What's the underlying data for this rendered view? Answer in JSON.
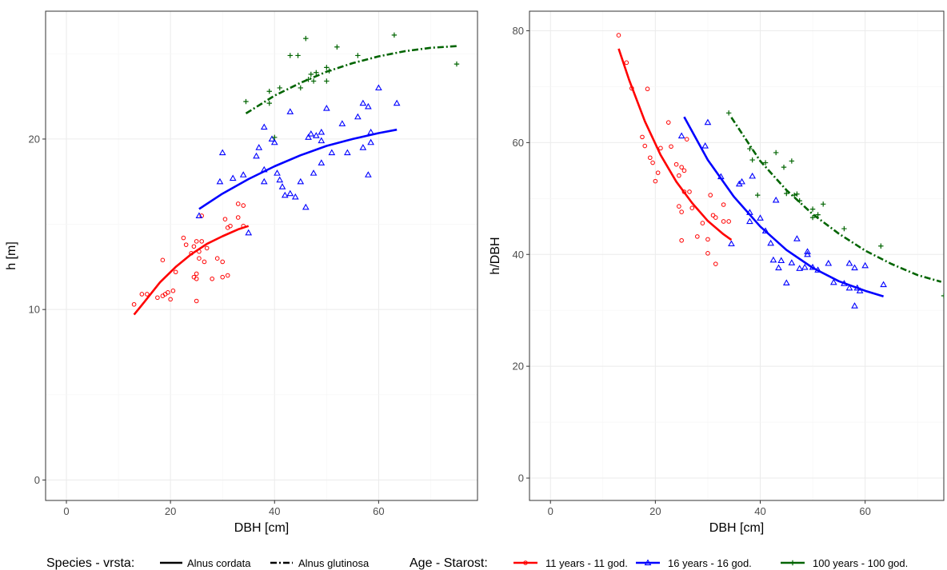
{
  "chart_data": [
    {
      "type": "scatter",
      "xlabel": "DBH [cm]",
      "ylabel": "h [m]",
      "xlim": [
        -4,
        79
      ],
      "ylim": [
        -1.2,
        27.5
      ],
      "xticks": [
        0,
        20,
        40,
        60
      ],
      "yticks": [
        0,
        10,
        20
      ],
      "grid": true,
      "series": [
        {
          "name": "11 years - 11 god.",
          "color": "#ff0000",
          "marker": "circle",
          "points": [
            [
              13,
              10.3
            ],
            [
              14.5,
              10.9
            ],
            [
              15.5,
              10.9
            ],
            [
              17.5,
              10.7
            ],
            [
              18.5,
              10.8
            ],
            [
              18.5,
              12.9
            ],
            [
              19,
              10.9
            ],
            [
              19.5,
              11
            ],
            [
              20,
              10.6
            ],
            [
              20.5,
              11.1
            ],
            [
              21,
              12.2
            ],
            [
              22.5,
              14.2
            ],
            [
              23,
              13.8
            ],
            [
              24,
              13.3
            ],
            [
              24.5,
              13.7
            ],
            [
              24.5,
              11.9
            ],
            [
              25,
              14
            ],
            [
              25,
              12.1
            ],
            [
              25,
              11.8
            ],
            [
              25,
              10.5
            ],
            [
              25.5,
              13.4
            ],
            [
              25.5,
              13
            ],
            [
              26,
              14
            ],
            [
              26,
              15.5
            ],
            [
              26.5,
              12.8
            ],
            [
              27,
              13.6
            ],
            [
              28,
              11.8
            ],
            [
              29,
              13
            ],
            [
              30,
              12.8
            ],
            [
              30,
              11.9
            ],
            [
              30.5,
              15.3
            ],
            [
              31,
              14.8
            ],
            [
              31,
              12
            ],
            [
              31.5,
              14.9
            ],
            [
              33,
              16.2
            ],
            [
              33,
              15.4
            ],
            [
              34,
              16.1
            ],
            [
              34,
              14.9
            ]
          ],
          "fit": [
            [
              13,
              9.7
            ],
            [
              15,
              10.45
            ],
            [
              18,
              11.6
            ],
            [
              21,
              12.5
            ],
            [
              24,
              13.25
            ],
            [
              27,
              13.85
            ],
            [
              30,
              14.3
            ],
            [
              33,
              14.7
            ],
            [
              35,
              14.9
            ]
          ]
        },
        {
          "name": "16 years - 16 god.",
          "color": "#0000ff",
          "marker": "triangle",
          "points": [
            [
              25.5,
              15.5
            ],
            [
              29.5,
              17.5
            ],
            [
              30,
              19.2
            ],
            [
              32,
              17.7
            ],
            [
              34,
              17.9
            ],
            [
              35,
              14.5
            ],
            [
              36.5,
              19
            ],
            [
              37,
              19.5
            ],
            [
              38,
              17.5
            ],
            [
              38,
              18.2
            ],
            [
              38,
              20.7
            ],
            [
              39.5,
              20
            ],
            [
              40,
              19.8
            ],
            [
              40.5,
              18
            ],
            [
              41,
              17.6
            ],
            [
              41.5,
              17.2
            ],
            [
              42,
              16.7
            ],
            [
              43,
              16.8
            ],
            [
              43,
              21.6
            ],
            [
              44,
              16.6
            ],
            [
              45,
              17.5
            ],
            [
              46,
              16
            ],
            [
              46.5,
              20.1
            ],
            [
              47,
              20.3
            ],
            [
              47.5,
              18
            ],
            [
              48,
              20.2
            ],
            [
              49,
              18.6
            ],
            [
              49,
              19.9
            ],
            [
              49,
              20.4
            ],
            [
              50,
              21.8
            ],
            [
              51,
              19.2
            ],
            [
              53,
              20.9
            ],
            [
              54,
              19.2
            ],
            [
              56,
              21.3
            ],
            [
              57,
              19.5
            ],
            [
              57,
              22.1
            ],
            [
              58,
              17.9
            ],
            [
              58,
              21.9
            ],
            [
              58.5,
              19.8
            ],
            [
              58.5,
              20.4
            ],
            [
              60,
              23
            ],
            [
              63.5,
              22.1
            ]
          ],
          "fit": [
            [
              25.5,
              15.9
            ],
            [
              30,
              16.8
            ],
            [
              35,
              17.65
            ],
            [
              40,
              18.4
            ],
            [
              45,
              19.05
            ],
            [
              50,
              19.6
            ],
            [
              55,
              20
            ],
            [
              60,
              20.35
            ],
            [
              63.5,
              20.55
            ]
          ]
        },
        {
          "name": "100 years - 100 god.",
          "color": "#006400",
          "marker": "plus",
          "points": [
            [
              34.5,
              22.2
            ],
            [
              39,
              22.8
            ],
            [
              39,
              22.1
            ],
            [
              40,
              20.1
            ],
            [
              41,
              23
            ],
            [
              43,
              24.9
            ],
            [
              44.5,
              24.9
            ],
            [
              45,
              23
            ],
            [
              46,
              25.9
            ],
            [
              46.5,
              23.5
            ],
            [
              47,
              23.8
            ],
            [
              47.5,
              23.4
            ],
            [
              48,
              23.9
            ],
            [
              50,
              24.2
            ],
            [
              50,
              23.4
            ],
            [
              50.5,
              24
            ],
            [
              52,
              25.4
            ],
            [
              56,
              24.9
            ],
            [
              63,
              26.1
            ],
            [
              75,
              24.4
            ]
          ],
          "fit": [
            [
              34.5,
              21.5
            ],
            [
              40,
              22.55
            ],
            [
              45,
              23.3
            ],
            [
              50,
              23.95
            ],
            [
              55,
              24.45
            ],
            [
              60,
              24.85
            ],
            [
              65,
              25.15
            ],
            [
              70,
              25.35
            ],
            [
              75,
              25.45
            ]
          ]
        }
      ]
    },
    {
      "type": "scatter",
      "xlabel": "DBH [cm]",
      "ylabel": "h/DBH",
      "xlim": [
        -4,
        75
      ],
      "ylim": [
        -4,
        83.5
      ],
      "xticks": [
        0,
        20,
        40,
        60
      ],
      "yticks": [
        0,
        20,
        40,
        60,
        80
      ],
      "grid": true,
      "series": [
        {
          "name": "11 years - 11 god.",
          "color": "#ff0000",
          "marker": "circle",
          "points": [
            [
              13,
              79.2
            ],
            [
              14.5,
              74.3
            ],
            [
              15.5,
              69.7
            ],
            [
              17.5,
              61
            ],
            [
              18,
              59.4
            ],
            [
              18.5,
              69.6
            ],
            [
              19,
              57.3
            ],
            [
              19.5,
              56.4
            ],
            [
              20,
              53.1
            ],
            [
              20.5,
              54.6
            ],
            [
              21,
              59
            ],
            [
              22.5,
              63.6
            ],
            [
              23,
              59.3
            ],
            [
              24,
              56.1
            ],
            [
              24.5,
              54.1
            ],
            [
              24.5,
              48.6
            ],
            [
              25,
              55.6
            ],
            [
              25,
              47.6
            ],
            [
              25,
              42.5
            ],
            [
              25.5,
              55
            ],
            [
              25.5,
              51.2
            ],
            [
              26,
              60.6
            ],
            [
              26.5,
              51.2
            ],
            [
              27,
              48.3
            ],
            [
              28,
              43.2
            ],
            [
              29,
              45.6
            ],
            [
              30,
              42.7
            ],
            [
              30,
              40.2
            ],
            [
              30.5,
              50.6
            ],
            [
              31,
              47
            ],
            [
              31.5,
              46.6
            ],
            [
              31.5,
              38.3
            ],
            [
              33,
              48.9
            ],
            [
              33,
              45.9
            ],
            [
              34,
              45.9
            ]
          ],
          "fit": [
            [
              13,
              76.8
            ],
            [
              15,
              71.2
            ],
            [
              18,
              63.8
            ],
            [
              21,
              57.8
            ],
            [
              24,
              53
            ],
            [
              27,
              49.2
            ],
            [
              30,
              46
            ],
            [
              33,
              43.6
            ],
            [
              34.5,
              42.6
            ]
          ]
        },
        {
          "name": "16 years - 16 god.",
          "color": "#0000ff",
          "marker": "triangle",
          "points": [
            [
              25,
              61.2
            ],
            [
              29.5,
              59.4
            ],
            [
              30,
              63.6
            ],
            [
              32.5,
              53.9
            ],
            [
              34.5,
              41.9
            ],
            [
              36,
              52.6
            ],
            [
              36.5,
              53
            ],
            [
              38,
              47.5
            ],
            [
              38.5,
              54
            ],
            [
              38,
              45.9
            ],
            [
              40,
              46.5
            ],
            [
              41,
              44.2
            ],
            [
              42,
              42
            ],
            [
              42.5,
              39
            ],
            [
              43,
              49.7
            ],
            [
              43.5,
              37.6
            ],
            [
              44,
              38.9
            ],
            [
              45,
              34.9
            ],
            [
              46,
              38.5
            ],
            [
              47,
              42.8
            ],
            [
              47.5,
              37.5
            ],
            [
              48.5,
              37.7
            ],
            [
              49,
              40.5
            ],
            [
              49,
              40
            ],
            [
              50,
              37.7
            ],
            [
              51,
              37.2
            ],
            [
              53,
              38.4
            ],
            [
              54,
              35
            ],
            [
              56,
              34.8
            ],
            [
              57,
              38.4
            ],
            [
              57,
              34
            ],
            [
              58,
              37.6
            ],
            [
              58,
              30.8
            ],
            [
              58.5,
              34
            ],
            [
              59,
              33.5
            ],
            [
              60,
              38
            ],
            [
              63.5,
              34.6
            ]
          ],
          "fit": [
            [
              25.5,
              64.6
            ],
            [
              30,
              56.9
            ],
            [
              35,
              50.3
            ],
            [
              40,
              45
            ],
            [
              45,
              40.8
            ],
            [
              50,
              37.6
            ],
            [
              55,
              35.2
            ],
            [
              60,
              33.5
            ],
            [
              63.5,
              32.5
            ]
          ]
        },
        {
          "name": "100 years - 100 god.",
          "color": "#006400",
          "marker": "plus",
          "points": [
            [
              34,
              65.3
            ],
            [
              38,
              58.9
            ],
            [
              38.5,
              56.9
            ],
            [
              39.5,
              50.6
            ],
            [
              41,
              56.4
            ],
            [
              43,
              58.2
            ],
            [
              44.5,
              55.6
            ],
            [
              45,
              50.9
            ],
            [
              46,
              56.7
            ],
            [
              46.5,
              50.6
            ],
            [
              47,
              50.8
            ],
            [
              47.5,
              49.6
            ],
            [
              50,
              48.1
            ],
            [
              50,
              46.6
            ],
            [
              51,
              47.1
            ],
            [
              52,
              49
            ],
            [
              56,
              44.6
            ],
            [
              63,
              41.5
            ],
            [
              75,
              32.6
            ]
          ],
          "fit": [
            [
              34.5,
              64.5
            ],
            [
              40,
              56.7
            ],
            [
              45,
              51.5
            ],
            [
              50,
              47.2
            ],
            [
              55,
              43.7
            ],
            [
              60,
              40.7
            ],
            [
              65,
              38.3
            ],
            [
              70,
              36.3
            ],
            [
              74.5,
              35.1
            ]
          ]
        }
      ]
    }
  ],
  "legend": {
    "species_title": "Species - vrsta:",
    "species": [
      {
        "label": "Alnus cordata",
        "dash": "solid"
      },
      {
        "label": "Alnus glutinosa",
        "dash": "dashdot"
      }
    ],
    "age_title": "Age - Starost:",
    "age": [
      {
        "label": "11 years - 11 god.",
        "color": "#ff0000",
        "marker": "circle"
      },
      {
        "label": "16 years - 16 god.",
        "color": "#0000ff",
        "marker": "triangle"
      },
      {
        "label": "100 years - 100 god.",
        "color": "#006400",
        "marker": "plus"
      }
    ]
  }
}
